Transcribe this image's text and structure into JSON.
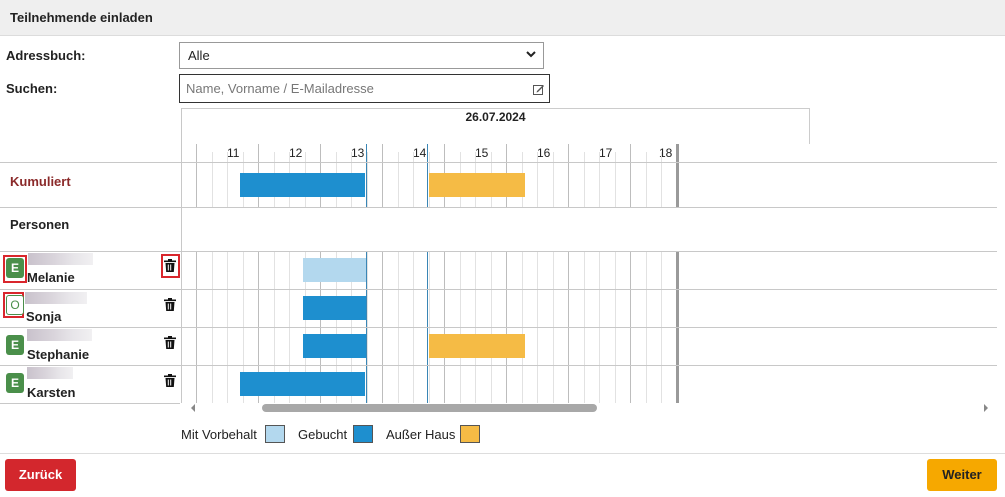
{
  "dialog": {
    "title": "Teilnehmende einladen"
  },
  "form": {
    "addressbook_label": "Adressbuch:",
    "addressbook_value": "Alle",
    "search_label": "Suchen:",
    "search_placeholder": "Name, Vorname / E-Mailadresse"
  },
  "timeline": {
    "date": "26.07.2024",
    "hours": [
      "11",
      "12",
      "13",
      "14",
      "15",
      "16",
      "17",
      "18"
    ]
  },
  "sections": {
    "cumulative_label": "Kumuliert",
    "persons_label": "Personen"
  },
  "persons": [
    {
      "name": "Melanie",
      "badge": "E"
    },
    {
      "name": "Sonja",
      "badge": "O"
    },
    {
      "name": "Stephanie",
      "badge": "E"
    },
    {
      "name": "Karsten",
      "badge": "E"
    }
  ],
  "legend": {
    "tentative": "Mit Vorbehalt",
    "booked": "Gebucht",
    "out_of_office": "Außer Haus"
  },
  "colors": {
    "tentative": "#b3d8ee",
    "booked": "#1e8fcf",
    "out_of_office": "#f5bb45",
    "badge_green": "#4a8f4a",
    "back_button": "#d3272d",
    "next_button": "#f6a800",
    "cumulative_label": "#8b2a2a"
  },
  "buttons": {
    "back": "Zurück",
    "next": "Weiter"
  }
}
